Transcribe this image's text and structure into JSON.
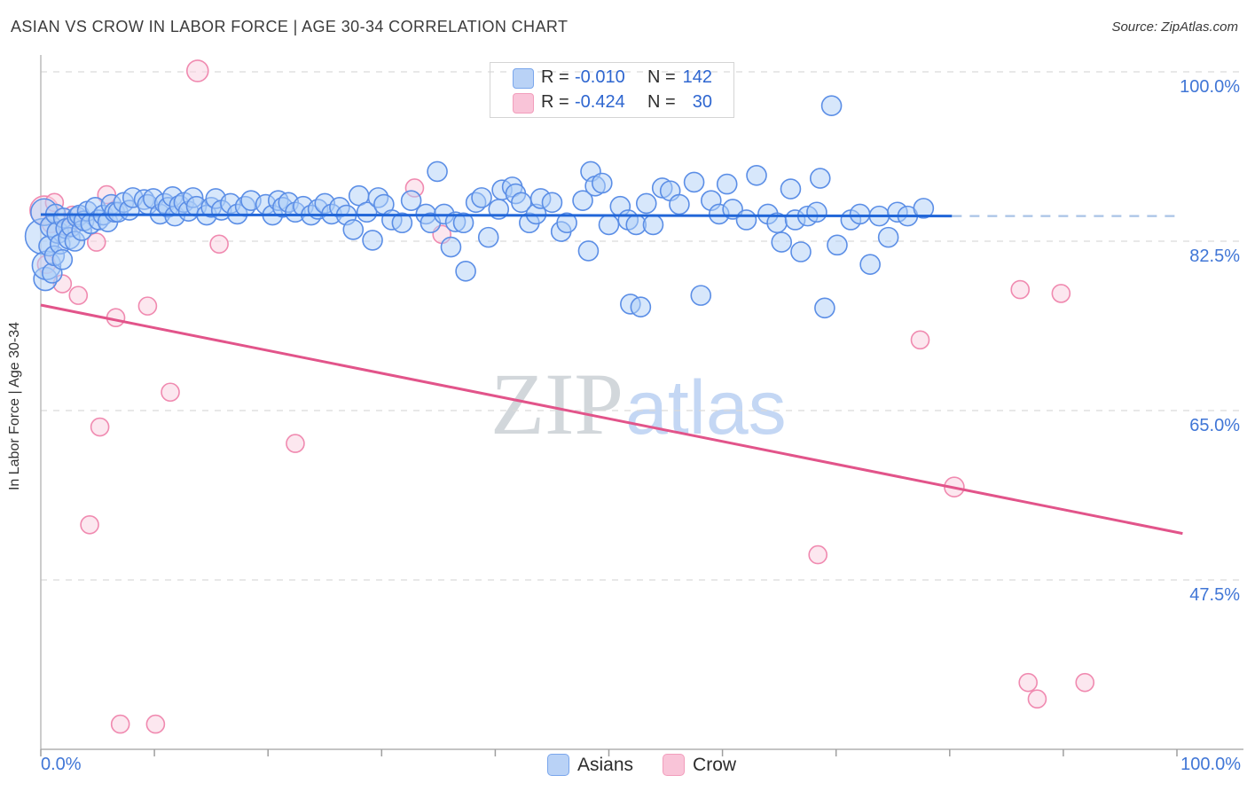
{
  "header": {
    "title": "ASIAN VS CROW IN LABOR FORCE | AGE 30-34 CORRELATION CHART",
    "source": "Source: ZipAtlas.com"
  },
  "watermark": {
    "part1": "ZIP",
    "part2": "atlas"
  },
  "legend_box": {
    "rows": [
      {
        "series": "Asians",
        "r_label": "R =",
        "r_value": "-0.010",
        "n_label": "N =",
        "n_value": "142",
        "swatch_fill": "#b9d2f6",
        "swatch_stroke": "#7aa6ec"
      },
      {
        "series": "Crow",
        "r_label": "R =",
        "r_value": "-0.424",
        "n_label": "N =",
        "n_value": "30",
        "swatch_fill": "#f9c4d8",
        "swatch_stroke": "#f29ebc"
      }
    ]
  },
  "bottom_legend": {
    "items": [
      {
        "label": "Asians",
        "swatch_fill": "#b9d2f6",
        "swatch_stroke": "#7aa6ec"
      },
      {
        "label": "Crow",
        "swatch_fill": "#f9c4d8",
        "swatch_stroke": "#f29ebc"
      }
    ]
  },
  "axes": {
    "y_label": "In Labor Force | Age 30-34",
    "y_ticks": [
      {
        "value": 100.0,
        "label": "100.0%"
      },
      {
        "value": 82.5,
        "label": "82.5%"
      },
      {
        "value": 65.0,
        "label": "65.0%"
      },
      {
        "value": 47.5,
        "label": "47.5%"
      }
    ],
    "x_ticks_labeled": [
      {
        "value": 0,
        "label": "0.0%"
      },
      {
        "value": 100,
        "label": "100.0%"
      }
    ],
    "x_tick_values": [
      0,
      10,
      20,
      30,
      40,
      50,
      60,
      70,
      80,
      90,
      100
    ]
  },
  "chart_data": {
    "type": "scatter",
    "title": "ASIAN VS CROW IN LABOR FORCE | AGE 30-34 CORRELATION CHART",
    "xlabel": "",
    "ylabel": "In Labor Force | Age 30-34",
    "xlim": [
      0,
      106
    ],
    "ylim": [
      25,
      102
    ],
    "grid": "horizontal-dashed",
    "legend_position": "top-center",
    "series": [
      {
        "name": "Asians",
        "R": -0.01,
        "N": 142,
        "stroke": "#5b8ee6",
        "fill": "rgba(176,208,247,0.5)",
        "points": [
          [
            0.2,
            83.0,
            20
          ],
          [
            0.3,
            85.5,
            15
          ],
          [
            0.4,
            78.6,
            13
          ],
          [
            0.5,
            80.0,
            16
          ],
          [
            0.7,
            82.0,
            11
          ],
          [
            0.9,
            84.0,
            12
          ],
          [
            1.0,
            79.2,
            11
          ],
          [
            1.2,
            81.0,
            11
          ],
          [
            1.3,
            85.3,
            11
          ],
          [
            1.5,
            83.4,
            12
          ],
          [
            1.7,
            82.2,
            11
          ],
          [
            1.9,
            80.6,
            11
          ],
          [
            2.0,
            84.9,
            11
          ],
          [
            2.2,
            83.8,
            11
          ],
          [
            2.5,
            82.8,
            12
          ],
          [
            2.7,
            84.0,
            11
          ],
          [
            3.0,
            82.5,
            11
          ],
          [
            3.2,
            85.0,
            11
          ],
          [
            3.4,
            85.2,
            11
          ],
          [
            3.6,
            83.6,
            11
          ],
          [
            3.8,
            84.6,
            11
          ],
          [
            4.1,
            85.6,
            11
          ],
          [
            4.4,
            84.3,
            11
          ],
          [
            4.8,
            86.0,
            11
          ],
          [
            5.1,
            84.7,
            11
          ],
          [
            5.5,
            85.2,
            11
          ],
          [
            5.9,
            84.5,
            11
          ],
          [
            6.2,
            86.3,
            11
          ],
          [
            6.5,
            85.5,
            11
          ],
          [
            6.8,
            85.5,
            11
          ],
          [
            7.3,
            86.5
          ],
          [
            7.8,
            85.7
          ],
          [
            8.1,
            87.0
          ],
          [
            9.1,
            86.8
          ],
          [
            9.4,
            86.3
          ],
          [
            9.9,
            86.9
          ],
          [
            10.5,
            85.3
          ],
          [
            10.9,
            86.4
          ],
          [
            11.2,
            86.0
          ],
          [
            11.6,
            87.1
          ],
          [
            11.8,
            85.1
          ],
          [
            12.2,
            86.2
          ],
          [
            12.6,
            86.5
          ],
          [
            13.0,
            85.6
          ],
          [
            13.4,
            87.0
          ],
          [
            13.7,
            86.1
          ],
          [
            14.6,
            85.2
          ],
          [
            15.0,
            86.0
          ],
          [
            15.4,
            86.9
          ],
          [
            15.9,
            85.7
          ],
          [
            16.7,
            86.4
          ],
          [
            17.3,
            85.3
          ],
          [
            18.0,
            86.1
          ],
          [
            18.5,
            86.7
          ],
          [
            19.8,
            86.3
          ],
          [
            20.4,
            85.2
          ],
          [
            20.9,
            86.7
          ],
          [
            21.3,
            86.0
          ],
          [
            21.8,
            86.5
          ],
          [
            22.4,
            85.5
          ],
          [
            23.1,
            86.1
          ],
          [
            23.8,
            85.2
          ],
          [
            24.4,
            85.8
          ],
          [
            25.0,
            86.4
          ],
          [
            25.6,
            85.3
          ],
          [
            26.3,
            86.0
          ],
          [
            26.9,
            85.2
          ],
          [
            27.5,
            83.7
          ],
          [
            28.0,
            87.2
          ],
          [
            28.7,
            85.5
          ],
          [
            29.2,
            82.6
          ],
          [
            29.7,
            87.0
          ],
          [
            30.2,
            86.3
          ],
          [
            30.9,
            84.7
          ],
          [
            31.8,
            84.4
          ],
          [
            32.6,
            86.7
          ],
          [
            33.9,
            85.3
          ],
          [
            34.3,
            84.4
          ],
          [
            34.9,
            89.7
          ],
          [
            35.5,
            85.3
          ],
          [
            36.1,
            81.9
          ],
          [
            36.5,
            84.5
          ],
          [
            37.2,
            84.4
          ],
          [
            37.4,
            79.4
          ],
          [
            38.3,
            86.5
          ],
          [
            38.8,
            87.0
          ],
          [
            39.4,
            82.9
          ],
          [
            40.3,
            85.8
          ],
          [
            40.6,
            87.8
          ],
          [
            41.5,
            88.1
          ],
          [
            41.8,
            87.4
          ],
          [
            42.3,
            86.5
          ],
          [
            43.0,
            84.4
          ],
          [
            43.6,
            85.3
          ],
          [
            44.0,
            86.9
          ],
          [
            45.0,
            86.5
          ],
          [
            45.8,
            83.5
          ],
          [
            46.3,
            84.4
          ],
          [
            47.7,
            86.7
          ],
          [
            48.2,
            81.5
          ],
          [
            48.4,
            89.7
          ],
          [
            48.8,
            88.2
          ],
          [
            49.4,
            88.5
          ],
          [
            50.0,
            84.2
          ],
          [
            51.0,
            86.1
          ],
          [
            51.7,
            84.7
          ],
          [
            51.9,
            76.0
          ],
          [
            52.4,
            84.2
          ],
          [
            52.8,
            75.7
          ],
          [
            53.3,
            86.4
          ],
          [
            53.9,
            84.2
          ],
          [
            54.7,
            88.0
          ],
          [
            55.4,
            87.7
          ],
          [
            56.2,
            86.3
          ],
          [
            57.5,
            88.6
          ],
          [
            58.1,
            76.9
          ],
          [
            59.0,
            86.7
          ],
          [
            59.7,
            85.3
          ],
          [
            60.4,
            88.4
          ],
          [
            60.9,
            85.8
          ],
          [
            62.1,
            84.7
          ],
          [
            63.0,
            89.3
          ],
          [
            64.0,
            85.3
          ],
          [
            64.8,
            84.4
          ],
          [
            65.2,
            82.4
          ],
          [
            66.0,
            87.9
          ],
          [
            66.4,
            84.7
          ],
          [
            66.9,
            81.4
          ],
          [
            67.5,
            85.1
          ],
          [
            68.3,
            85.5
          ],
          [
            68.6,
            89.0
          ],
          [
            69.0,
            75.6
          ],
          [
            69.6,
            96.5
          ],
          [
            70.1,
            82.1
          ],
          [
            71.3,
            84.7
          ],
          [
            72.1,
            85.3
          ],
          [
            73.0,
            80.1
          ],
          [
            73.8,
            85.1
          ],
          [
            74.6,
            82.9
          ],
          [
            75.4,
            85.5
          ],
          [
            76.3,
            85.1
          ],
          [
            77.7,
            85.9
          ]
        ]
      },
      {
        "name": "Crow",
        "R": -0.424,
        "N": 30,
        "stroke": "#f08ab0",
        "fill": "rgba(250,211,226,0.55)",
        "points": [
          [
            13.8,
            100.1,
            12
          ],
          [
            5.8,
            87.3,
            10
          ],
          [
            0.3,
            85.7,
            16
          ],
          [
            0.9,
            84.3,
            10
          ],
          [
            2.4,
            83.9,
            10
          ],
          [
            1.2,
            86.5,
            10
          ],
          [
            4.9,
            82.4,
            10
          ],
          [
            15.7,
            82.2,
            10
          ],
          [
            32.9,
            88.0,
            10
          ],
          [
            35.3,
            83.2,
            10
          ],
          [
            0.5,
            80.1,
            10
          ],
          [
            1.9,
            78.1,
            10
          ],
          [
            2.8,
            85.2,
            10
          ],
          [
            3.3,
            76.9,
            10
          ],
          [
            6.6,
            74.6,
            10
          ],
          [
            9.4,
            75.8,
            10
          ],
          [
            11.4,
            66.9,
            10
          ],
          [
            5.2,
            63.3,
            10
          ],
          [
            22.4,
            61.6,
            10
          ],
          [
            4.3,
            53.2,
            10
          ],
          [
            7.0,
            32.6,
            10
          ],
          [
            10.1,
            32.6,
            10
          ],
          [
            68.4,
            50.1,
            10
          ],
          [
            77.4,
            72.3,
            10
          ],
          [
            80.4,
            57.1,
            11
          ],
          [
            86.2,
            77.5,
            10
          ],
          [
            89.8,
            77.1,
            10
          ],
          [
            86.9,
            36.9,
            10
          ],
          [
            87.7,
            35.2,
            10
          ],
          [
            91.9,
            36.9,
            10
          ]
        ]
      }
    ],
    "trend_lines": [
      {
        "series": "Asians",
        "style": "solid",
        "x1": 0,
        "y1": 85.25,
        "x2": 80.2,
        "y2": 85.1,
        "color": "#2166d8"
      },
      {
        "series": "Asians",
        "style": "dashed",
        "x1": 80.2,
        "y1": 85.1,
        "x2": 100.3,
        "y2": 85.1,
        "color": "#a9c3e6"
      },
      {
        "series": "Crow",
        "style": "solid",
        "x1": 0,
        "y1": 75.9,
        "x2": 100.5,
        "y2": 52.3,
        "color": "#e2548a"
      }
    ]
  }
}
